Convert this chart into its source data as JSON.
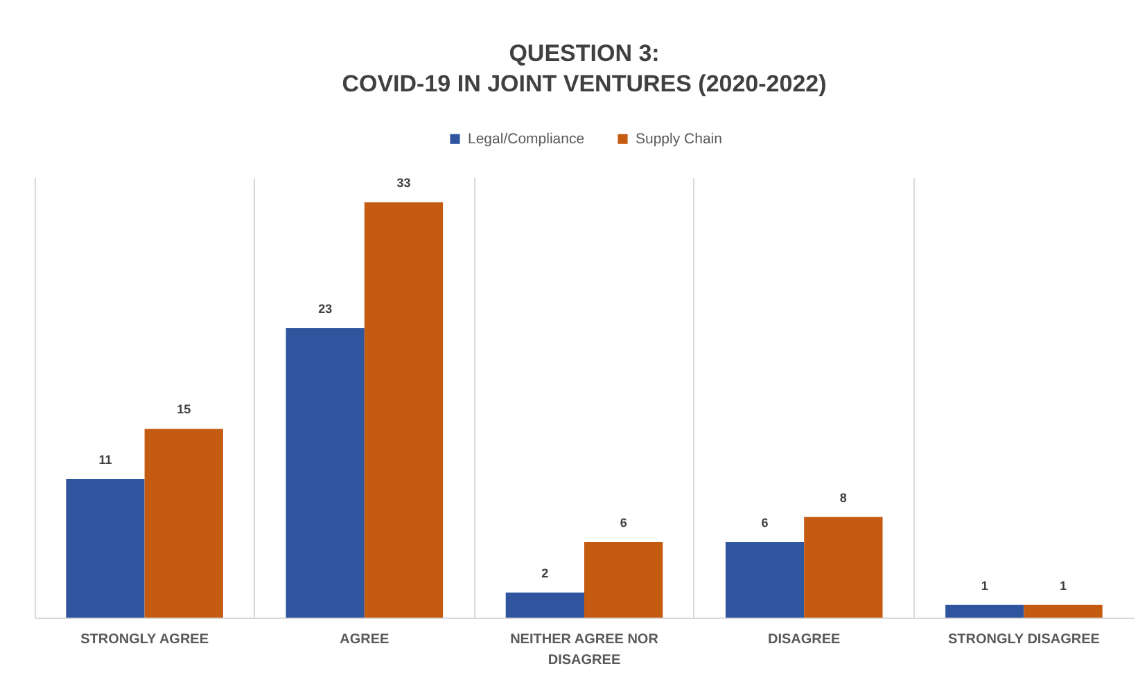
{
  "chart_data": {
    "type": "bar",
    "title": "QUESTION 3:\nCOVID-19 IN JOINT VENTURES (2020-2022)",
    "categories": [
      "STRONGLY AGREE",
      "AGREE",
      "NEITHER AGREE NOR DISAGREE",
      "DISAGREE",
      "STRONGLY DISAGREE"
    ],
    "series": [
      {
        "name": "Legal/Compliance",
        "color": "#2f559f",
        "values": [
          11,
          23,
          2,
          6,
          1
        ]
      },
      {
        "name": "Supply Chain",
        "color": "#c55a11",
        "values": [
          15,
          33,
          6,
          8,
          1
        ]
      }
    ],
    "data_labels": true,
    "legend": "top",
    "grid": "x",
    "tick_labels": "x"
  }
}
